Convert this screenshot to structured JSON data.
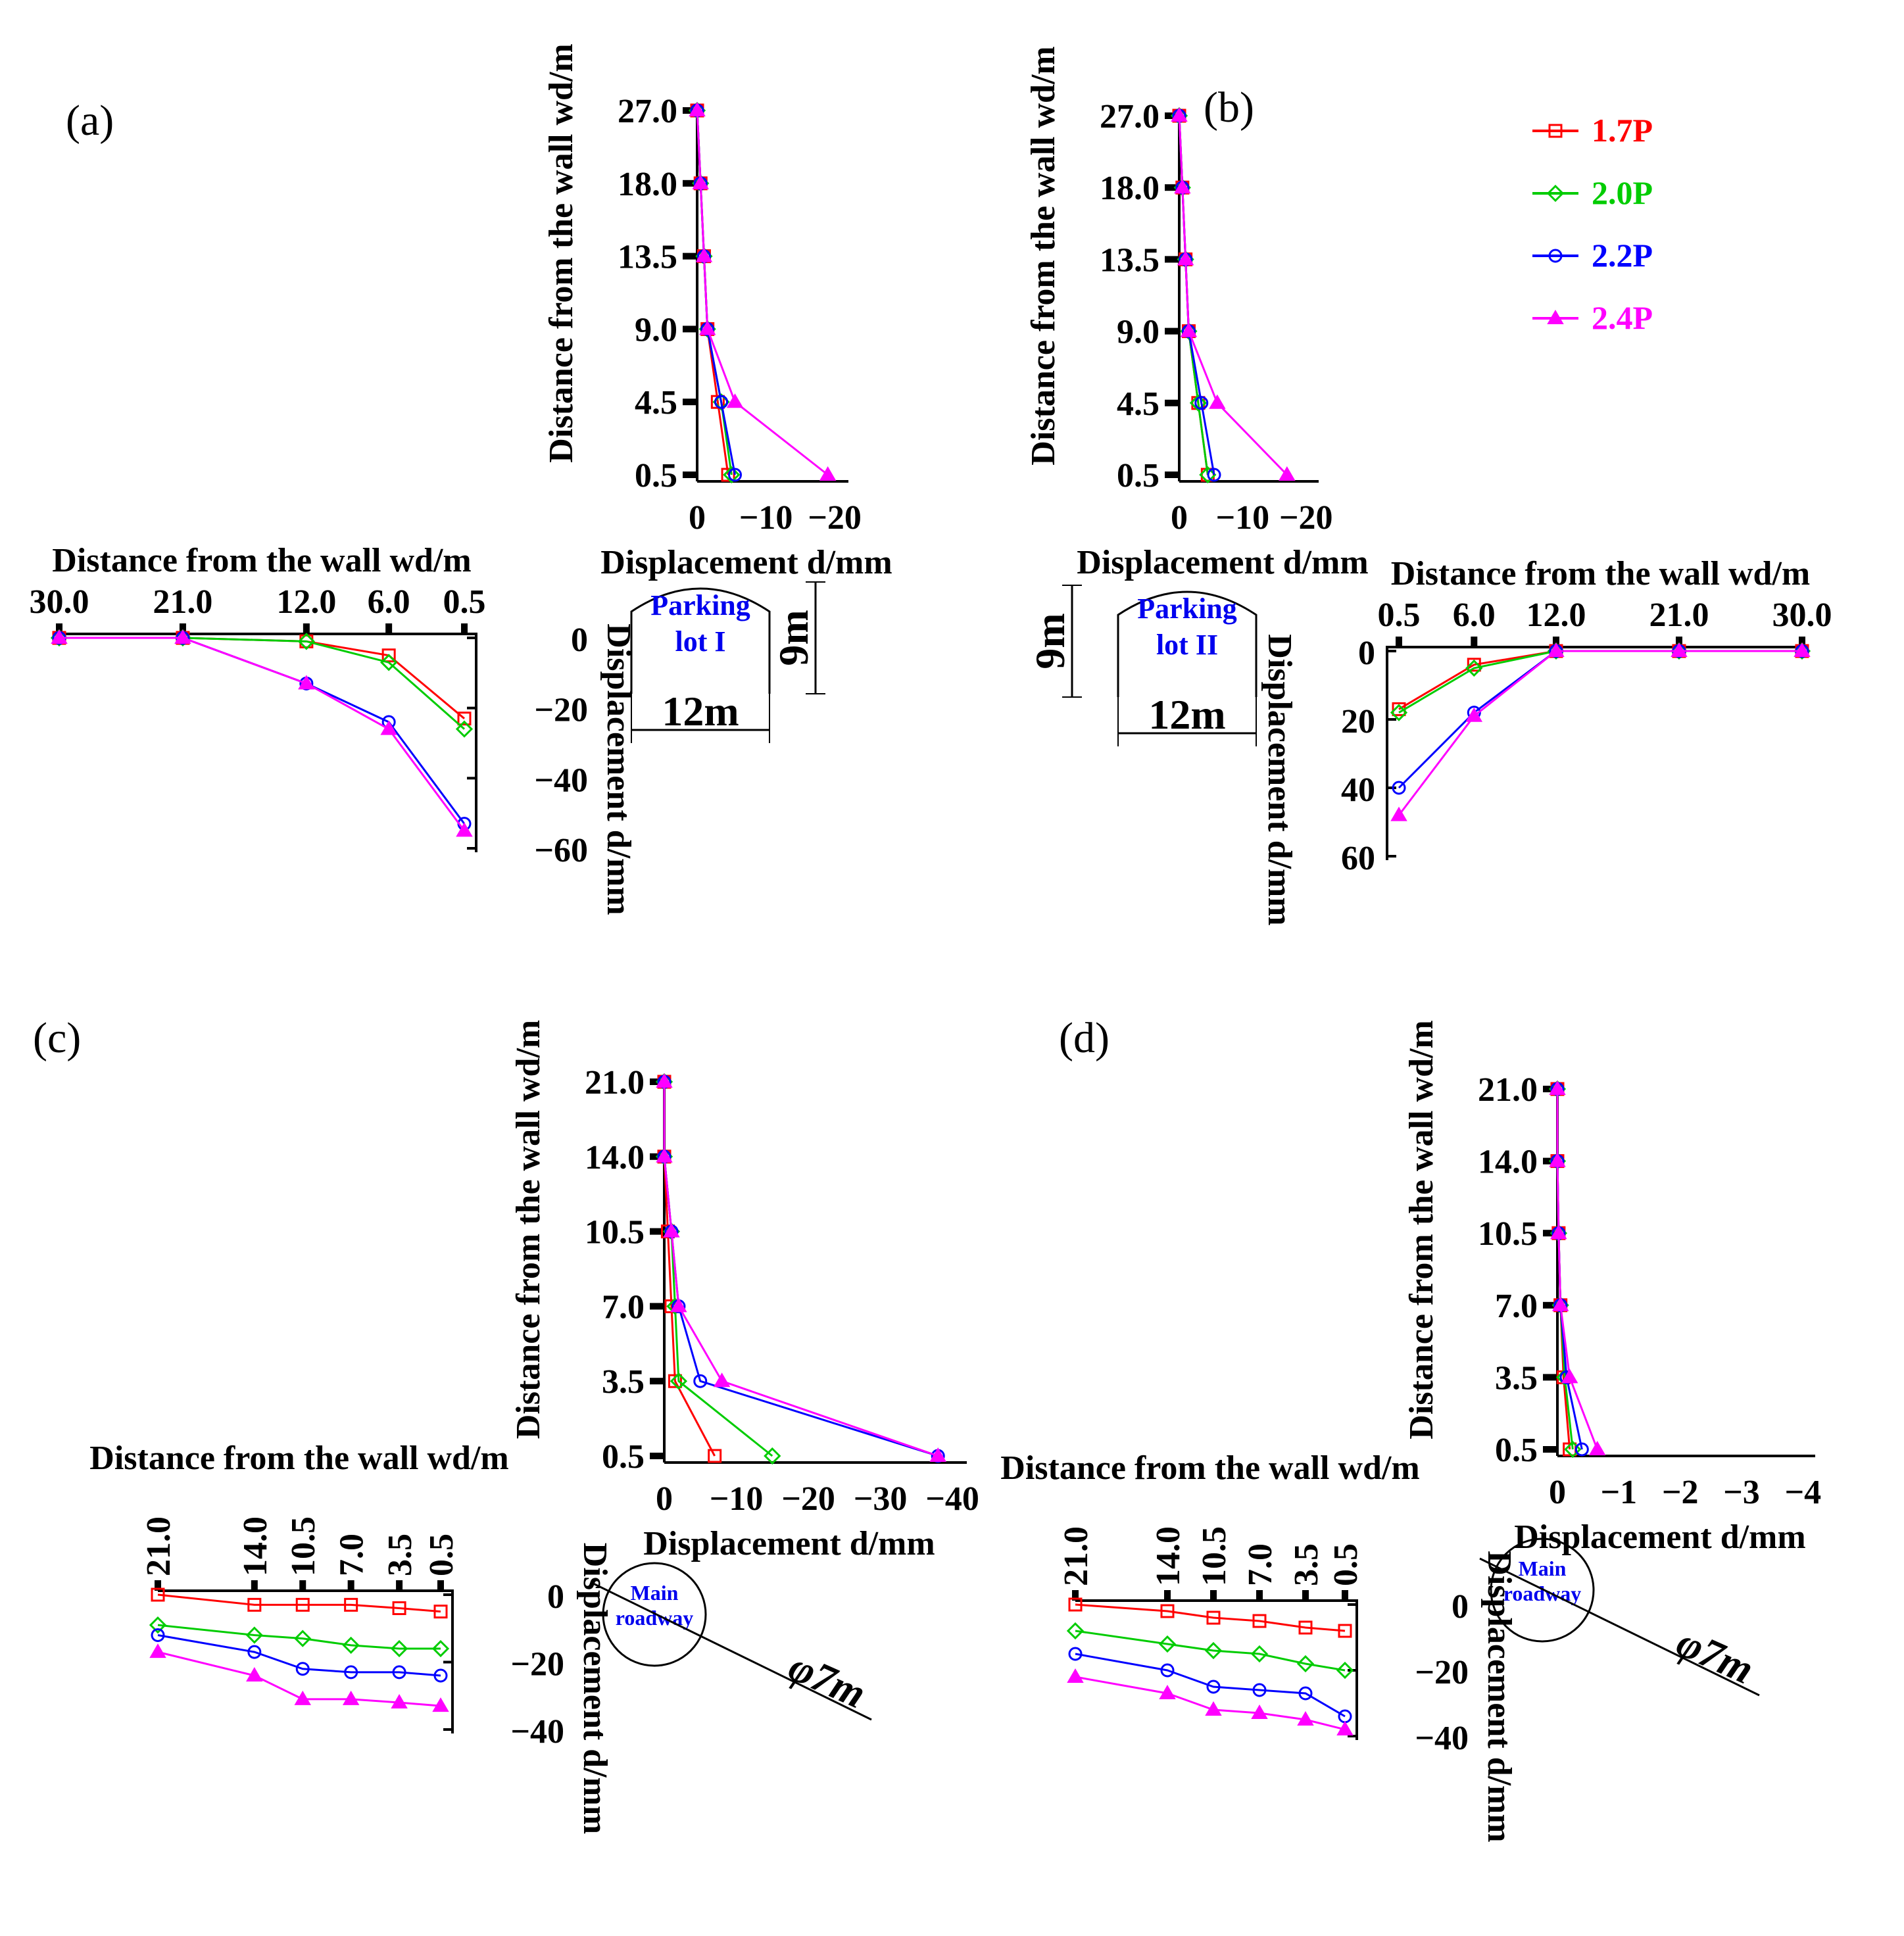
{
  "colors": {
    "1.7P": "#ff0000",
    "2.0P": "#00cc00",
    "2.2P": "#0000ff",
    "2.4P": "#ff00ff"
  },
  "legend": {
    "entries": [
      "1.7P",
      "2.0P",
      "2.2P",
      "2.4P"
    ]
  },
  "panels": [
    {
      "id": "a",
      "label": "(a)",
      "structure": {
        "kind": "arch",
        "lines": [
          "Parking",
          "lot I"
        ],
        "width_label": "12m",
        "height_label": "9m"
      }
    },
    {
      "id": "b",
      "label": "(b)",
      "structure": {
        "kind": "arch",
        "lines": [
          "Parking",
          "lot II"
        ],
        "width_label": "12m",
        "height_label": "9m"
      }
    },
    {
      "id": "c",
      "label": "(c)",
      "structure": {
        "kind": "circle",
        "lines": [
          "Main",
          "roadway"
        ],
        "diameter_label": "φ7m"
      }
    },
    {
      "id": "d",
      "label": "(d)",
      "structure": {
        "kind": "circle",
        "lines": [
          "Main",
          "roadway"
        ],
        "diameter_label": "φ7m"
      }
    }
  ],
  "chart_data": [
    {
      "panel": "a",
      "position": "roof",
      "type": "line",
      "title": "",
      "xlabel": "Displacement d/mm",
      "ylabel": "Distance from the wall wd/m",
      "x_ticks": [
        "0",
        "−10",
        "−20"
      ],
      "y_ticks": [
        "0.5",
        "4.5",
        "9.0",
        "13.5",
        "18.0",
        "27.0"
      ],
      "xlim": [
        0,
        -22
      ],
      "series": [
        {
          "name": "1.7P",
          "points": [
            [
              0,
              27
            ],
            [
              -0.5,
              18
            ],
            [
              -1,
              13.5
            ],
            [
              -1.5,
              9
            ],
            [
              -3,
              4.5
            ],
            [
              -4.5,
              0.5
            ]
          ]
        },
        {
          "name": "2.0P",
          "points": [
            [
              0,
              27
            ],
            [
              -0.5,
              18
            ],
            [
              -1,
              13.5
            ],
            [
              -1.5,
              9
            ],
            [
              -3.5,
              4.5
            ],
            [
              -5,
              0.5
            ]
          ]
        },
        {
          "name": "2.2P",
          "points": [
            [
              0,
              27
            ],
            [
              -0.5,
              18
            ],
            [
              -1,
              13.5
            ],
            [
              -1.5,
              9
            ],
            [
              -3.5,
              4.5
            ],
            [
              -5.5,
              0.5
            ]
          ]
        },
        {
          "name": "2.4P",
          "points": [
            [
              0,
              27
            ],
            [
              -0.5,
              18
            ],
            [
              -1,
              13.5
            ],
            [
              -1.5,
              9
            ],
            [
              -5.5,
              4.5
            ],
            [
              -19,
              0.5
            ]
          ]
        }
      ]
    },
    {
      "panel": "a",
      "position": "side",
      "type": "line",
      "title": "",
      "xlabel": "Distance from the wall wd/m",
      "ylabel": "Displacement d/mm",
      "x_ticks": [
        "30.0",
        "21.0",
        "12.0",
        "6.0",
        "0.5"
      ],
      "y_ticks": [
        "0",
        "−20",
        "−40",
        "−60"
      ],
      "ylim": [
        0,
        -60
      ],
      "series": [
        {
          "name": "1.7P",
          "points": [
            [
              30,
              0
            ],
            [
              21,
              0
            ],
            [
              12,
              -1
            ],
            [
              6,
              -5
            ],
            [
              0.5,
              -23
            ]
          ]
        },
        {
          "name": "2.0P",
          "points": [
            [
              30,
              0
            ],
            [
              21,
              0
            ],
            [
              12,
              -1
            ],
            [
              6,
              -7
            ],
            [
              0.5,
              -26
            ]
          ]
        },
        {
          "name": "2.2P",
          "points": [
            [
              30,
              0
            ],
            [
              21,
              0
            ],
            [
              12,
              -13
            ],
            [
              6,
              -24
            ],
            [
              0.5,
              -53
            ]
          ]
        },
        {
          "name": "2.4P",
          "points": [
            [
              30,
              0
            ],
            [
              21,
              0
            ],
            [
              12,
              -13
            ],
            [
              6,
              -26
            ],
            [
              0.5,
              -55
            ]
          ]
        }
      ]
    },
    {
      "panel": "b",
      "position": "roof",
      "type": "line",
      "title": "",
      "xlabel": "Displacement  d/mm",
      "ylabel": "Distance from the wall wd/m",
      "x_ticks": [
        "0",
        "−10",
        "−20"
      ],
      "y_ticks": [
        "0.5",
        "4.5",
        "9.0",
        "13.5",
        "18.0",
        "27.0"
      ],
      "xlim": [
        0,
        -22
      ],
      "series": [
        {
          "name": "1.7P",
          "points": [
            [
              0,
              27
            ],
            [
              -0.5,
              18
            ],
            [
              -1,
              13.5
            ],
            [
              -1.5,
              9
            ],
            [
              -3,
              4.5
            ],
            [
              -4.5,
              0.5
            ]
          ]
        },
        {
          "name": "2.0P",
          "points": [
            [
              0,
              27
            ],
            [
              -0.5,
              18
            ],
            [
              -1,
              13.5
            ],
            [
              -1.5,
              9
            ],
            [
              -3,
              4.5
            ],
            [
              -4.5,
              0.5
            ]
          ]
        },
        {
          "name": "2.2P",
          "points": [
            [
              0,
              27
            ],
            [
              -0.5,
              18
            ],
            [
              -1,
              13.5
            ],
            [
              -1.5,
              9
            ],
            [
              -3.5,
              4.5
            ],
            [
              -5.5,
              0.5
            ]
          ]
        },
        {
          "name": "2.4P",
          "points": [
            [
              0,
              27
            ],
            [
              -0.5,
              18
            ],
            [
              -1,
              13.5
            ],
            [
              -1.5,
              9
            ],
            [
              -6,
              4.5
            ],
            [
              -17,
              0.5
            ]
          ]
        }
      ]
    },
    {
      "panel": "b",
      "position": "side",
      "type": "line",
      "title": "",
      "xlabel": "Distance from the wall wd/m",
      "ylabel": "Displacement d/mm",
      "x_ticks": [
        "0.5",
        "6.0",
        "12.0",
        "21.0",
        "30.0"
      ],
      "y_ticks": [
        "0",
        "20",
        "40",
        "60"
      ],
      "ylim": [
        0,
        60
      ],
      "series": [
        {
          "name": "1.7P",
          "points": [
            [
              0.5,
              17
            ],
            [
              6,
              4
            ],
            [
              12,
              0
            ],
            [
              21,
              0
            ],
            [
              30,
              0
            ]
          ]
        },
        {
          "name": "2.0P",
          "points": [
            [
              0.5,
              18
            ],
            [
              6,
              5
            ],
            [
              12,
              0
            ],
            [
              21,
              0
            ],
            [
              30,
              0
            ]
          ]
        },
        {
          "name": "2.2P",
          "points": [
            [
              0.5,
              40
            ],
            [
              6,
              18
            ],
            [
              12,
              0
            ],
            [
              21,
              0
            ],
            [
              30,
              0
            ]
          ]
        },
        {
          "name": "2.4P",
          "points": [
            [
              0.5,
              48
            ],
            [
              6,
              19
            ],
            [
              12,
              0
            ],
            [
              21,
              0
            ],
            [
              30,
              0
            ]
          ]
        }
      ]
    },
    {
      "panel": "c",
      "position": "roof",
      "type": "line",
      "title": "",
      "xlabel": "Displacement d/mm",
      "ylabel": "Distance from the wall wd/m",
      "x_ticks": [
        "0",
        "−10",
        "−20",
        "−30",
        "−40"
      ],
      "y_ticks": [
        "0.5",
        "3.5",
        "7.0",
        "10.5",
        "14.0",
        "21.0"
      ],
      "xlim": [
        0,
        -42
      ],
      "series": [
        {
          "name": "1.7P",
          "points": [
            [
              0,
              21
            ],
            [
              0,
              14
            ],
            [
              -0.5,
              10.5
            ],
            [
              -1,
              7
            ],
            [
              -1.5,
              3.5
            ],
            [
              -7,
              0.5
            ]
          ]
        },
        {
          "name": "2.0P",
          "points": [
            [
              0,
              21
            ],
            [
              0,
              14
            ],
            [
              -1,
              10.5
            ],
            [
              -1.5,
              7
            ],
            [
              -2,
              3.5
            ],
            [
              -15,
              0.5
            ]
          ]
        },
        {
          "name": "2.2P",
          "points": [
            [
              0,
              21
            ],
            [
              0,
              14
            ],
            [
              -1,
              10.5
            ],
            [
              -2,
              7
            ],
            [
              -5,
              3.5
            ],
            [
              -38,
              0.5
            ]
          ]
        },
        {
          "name": "2.4P",
          "points": [
            [
              0,
              21
            ],
            [
              0,
              14
            ],
            [
              -1,
              10.5
            ],
            [
              -2,
              7
            ],
            [
              -8,
              3.5
            ],
            [
              -38,
              0.5
            ]
          ]
        }
      ]
    },
    {
      "panel": "c",
      "position": "side",
      "type": "line",
      "title": "",
      "xlabel": "Distance from the wall wd/m",
      "ylabel": "Displacement d/mm",
      "x_ticks": [
        "21.0",
        "14.0",
        "10.5",
        "7.0",
        "3.5",
        "0.5"
      ],
      "y_ticks": [
        "0",
        "−20",
        "−40"
      ],
      "ylim": [
        0,
        -40
      ],
      "series": [
        {
          "name": "1.7P",
          "points": [
            [
              21,
              0
            ],
            [
              14,
              -3
            ],
            [
              10.5,
              -3
            ],
            [
              7,
              -3
            ],
            [
              3.5,
              -4
            ],
            [
              0.5,
              -5
            ]
          ]
        },
        {
          "name": "2.0P",
          "points": [
            [
              21,
              -9
            ],
            [
              14,
              -12
            ],
            [
              10.5,
              -13
            ],
            [
              7,
              -15
            ],
            [
              3.5,
              -16
            ],
            [
              0.5,
              -16
            ]
          ]
        },
        {
          "name": "2.2P",
          "points": [
            [
              21,
              -12
            ],
            [
              14,
              -17
            ],
            [
              10.5,
              -22
            ],
            [
              7,
              -23
            ],
            [
              3.5,
              -23
            ],
            [
              0.5,
              -24
            ]
          ]
        },
        {
          "name": "2.4P",
          "points": [
            [
              21,
              -17
            ],
            [
              14,
              -24
            ],
            [
              10.5,
              -31
            ],
            [
              7,
              -31
            ],
            [
              3.5,
              -32
            ],
            [
              0.5,
              -33
            ]
          ]
        }
      ]
    },
    {
      "panel": "d",
      "position": "roof",
      "type": "line",
      "title": "",
      "xlabel": "Displacement d/mm",
      "ylabel": "Distance from the wall wd/m",
      "x_ticks": [
        "0",
        "−1",
        "−2",
        "−3",
        "−4"
      ],
      "y_ticks": [
        "0.5",
        "3.5",
        "7.0",
        "10.5",
        "14.0",
        "21.0"
      ],
      "xlim": [
        0,
        -4.2
      ],
      "series": [
        {
          "name": "1.7P",
          "points": [
            [
              0,
              21
            ],
            [
              0,
              14
            ],
            [
              -0.02,
              10.5
            ],
            [
              -0.05,
              7
            ],
            [
              -0.1,
              3.5
            ],
            [
              -0.2,
              0.5
            ]
          ]
        },
        {
          "name": "2.0P",
          "points": [
            [
              0,
              21
            ],
            [
              0,
              14
            ],
            [
              -0.02,
              10.5
            ],
            [
              -0.05,
              7
            ],
            [
              -0.12,
              3.5
            ],
            [
              -0.25,
              0.5
            ]
          ]
        },
        {
          "name": "2.2P",
          "points": [
            [
              0,
              21
            ],
            [
              0,
              14
            ],
            [
              -0.02,
              10.5
            ],
            [
              -0.05,
              7
            ],
            [
              -0.15,
              3.5
            ],
            [
              -0.4,
              0.5
            ]
          ]
        },
        {
          "name": "2.4P",
          "points": [
            [
              0,
              21
            ],
            [
              0,
              14
            ],
            [
              -0.02,
              10.5
            ],
            [
              -0.05,
              7
            ],
            [
              -0.2,
              3.5
            ],
            [
              -0.65,
              0.5
            ]
          ]
        }
      ]
    },
    {
      "panel": "d",
      "position": "side",
      "type": "line",
      "title": "",
      "xlabel": "Distance from the wall wd/m",
      "ylabel": "Displacement d/mm",
      "x_ticks": [
        "21.0",
        "14.0",
        "10.5",
        "7.0",
        "3.5",
        "0.5"
      ],
      "y_ticks": [
        "0",
        "−20",
        "−40"
      ],
      "ylim": [
        0,
        -40
      ],
      "series": [
        {
          "name": "1.7P",
          "points": [
            [
              21,
              0
            ],
            [
              14,
              -2
            ],
            [
              10.5,
              -4
            ],
            [
              7,
              -5
            ],
            [
              3.5,
              -7
            ],
            [
              0.5,
              -8
            ]
          ]
        },
        {
          "name": "2.0P",
          "points": [
            [
              21,
              -8
            ],
            [
              14,
              -12
            ],
            [
              10.5,
              -14
            ],
            [
              7,
              -15
            ],
            [
              3.5,
              -18
            ],
            [
              0.5,
              -20
            ]
          ]
        },
        {
          "name": "2.2P",
          "points": [
            [
              21,
              -15
            ],
            [
              14,
              -20
            ],
            [
              10.5,
              -25
            ],
            [
              7,
              -26
            ],
            [
              3.5,
              -27
            ],
            [
              0.5,
              -34
            ]
          ]
        },
        {
          "name": "2.4P",
          "points": [
            [
              21,
              -22
            ],
            [
              14,
              -27
            ],
            [
              10.5,
              -32
            ],
            [
              7,
              -33
            ],
            [
              3.5,
              -35
            ],
            [
              0.5,
              -38
            ]
          ]
        }
      ]
    }
  ]
}
